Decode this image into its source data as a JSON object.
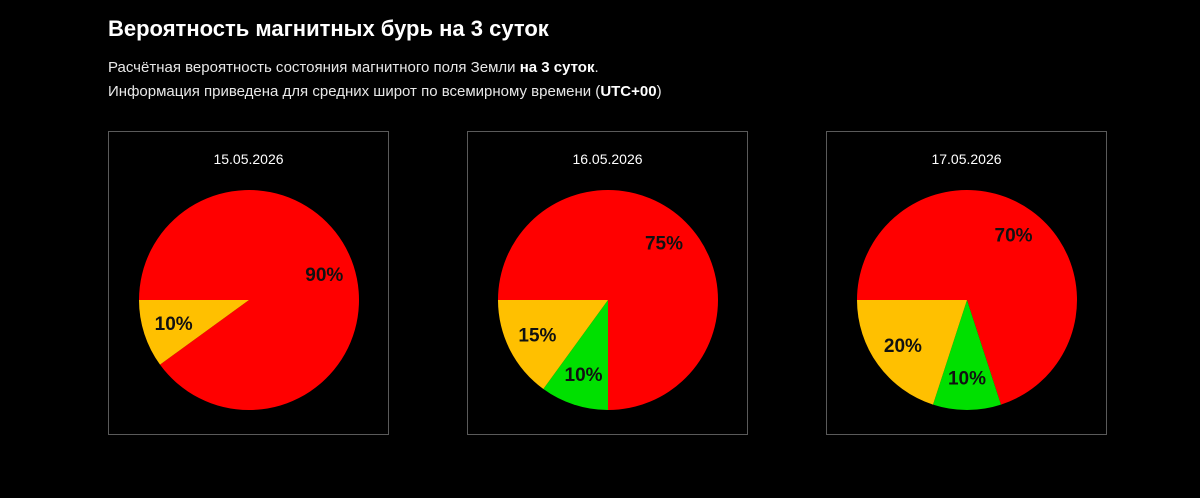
{
  "title": "Вероятность магнитных бурь на 3 суток",
  "description": {
    "line1_prefix": "Расчётная вероятность состояния магнитного поля Земли ",
    "line1_bold": "на 3 суток",
    "line1_suffix": ".",
    "line2_prefix": "Информация приведена для средних широт по всемирному времени (",
    "line2_bold": "UTC+00",
    "line2_suffix": ")"
  },
  "colors": {
    "storm": "#ff0000",
    "unsettled": "#ffc000",
    "quiet": "#00e000"
  },
  "chart_data": [
    {
      "type": "pie",
      "title": "15.05.2026",
      "slices": [
        {
          "color": "#ff0000",
          "value": 90,
          "label": "90%"
        },
        {
          "color": "#ffc000",
          "value": 10,
          "label": "10%"
        }
      ]
    },
    {
      "type": "pie",
      "title": "16.05.2026",
      "slices": [
        {
          "color": "#ff0000",
          "value": 75,
          "label": "75%"
        },
        {
          "color": "#00e000",
          "value": 10,
          "label": "10%"
        },
        {
          "color": "#ffc000",
          "value": 15,
          "label": "15%"
        }
      ]
    },
    {
      "type": "pie",
      "title": "17.05.2026",
      "slices": [
        {
          "color": "#ff0000",
          "value": 70,
          "label": "70%"
        },
        {
          "color": "#00e000",
          "value": 10,
          "label": "10%"
        },
        {
          "color": "#ffc000",
          "value": 20,
          "label": "20%"
        }
      ]
    }
  ]
}
